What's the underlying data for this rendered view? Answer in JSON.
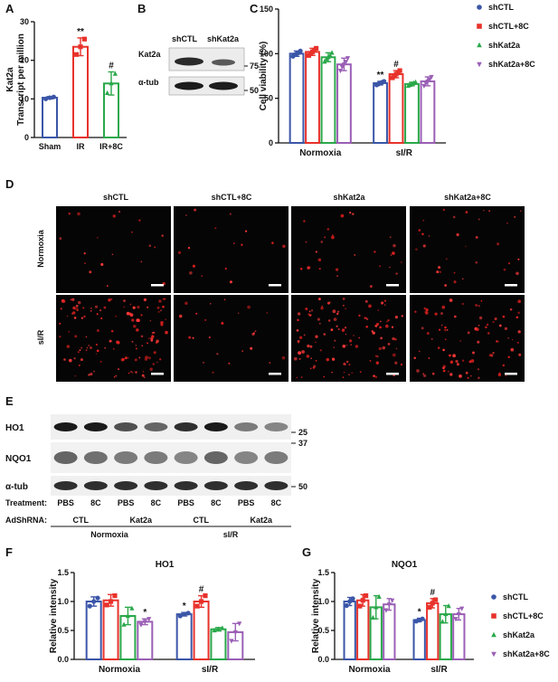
{
  "panels": {
    "A": {
      "label": "A"
    },
    "B": {
      "label": "B"
    },
    "C": {
      "label": "C"
    },
    "D": {
      "label": "D"
    },
    "E": {
      "label": "E"
    },
    "F": {
      "label": "F"
    },
    "G": {
      "label": "G"
    }
  },
  "colors": {
    "blue": "#3b56a8",
    "red": "#e8322b",
    "green": "#2aa84a",
    "purple": "#9a5fb5",
    "axis": "#111111"
  },
  "legend": {
    "entries": [
      {
        "label": "shCTL",
        "color": "#3b56a8",
        "marker": "circle"
      },
      {
        "label": "shCTL+8C",
        "color": "#e8322b",
        "marker": "square"
      },
      {
        "label": "shKat2a",
        "color": "#2aa84a",
        "marker": "triangle-up"
      },
      {
        "label": "shKat2a+8C",
        "color": "#9a5fb5",
        "marker": "triangle-down"
      }
    ]
  },
  "blot_b": {
    "headers": [
      "shCTL",
      "shKat2a"
    ],
    "rows": [
      "Kat2a",
      "α-tub"
    ],
    "markers": [
      "75",
      "50"
    ]
  },
  "images_d": {
    "columns": [
      "shCTL",
      "shCTL+8C",
      "shKat2a",
      "shKat2a+8C"
    ],
    "rows": [
      "Normoxia",
      "sI/R"
    ],
    "density": [
      [
        0.12,
        0.1,
        0.18,
        0.2
      ],
      [
        0.8,
        0.15,
        0.7,
        0.55
      ]
    ]
  },
  "blot_e": {
    "rows": [
      "HO1",
      "NQO1",
      "α-tub"
    ],
    "markers": [
      "25",
      "37",
      "50"
    ],
    "treatment_label": "Treatment:",
    "treatments": [
      "PBS",
      "8C",
      "PBS",
      "8C",
      "PBS",
      "8C",
      "PBS",
      "8C"
    ],
    "adsh_label": "AdShRNA:",
    "adsh": [
      "CTL",
      "Kat2a",
      "CTL",
      "Kat2a"
    ],
    "conditions": [
      "Normoxia",
      "sI/R"
    ],
    "ho1_intensity": [
      0.95,
      0.95,
      0.7,
      0.6,
      0.85,
      0.95,
      0.5,
      0.45
    ],
    "nqo1_intensity": [
      0.6,
      0.55,
      0.5,
      0.5,
      0.45,
      0.6,
      0.45,
      0.5
    ],
    "tub_intensity": [
      0.85,
      0.85,
      0.85,
      0.85,
      0.85,
      0.85,
      0.85,
      0.85
    ]
  },
  "chart_data": [
    {
      "id": "A",
      "type": "bar",
      "title": "",
      "ylabel": "Kat2a\nTranscript per million",
      "categories": [
        "Sham",
        "IR",
        "IR+8C"
      ],
      "values": [
        10.3,
        23.5,
        14.0
      ],
      "errors": [
        0.3,
        2.3,
        3.0
      ],
      "points": [
        [
          10.0,
          10.3,
          10.5
        ],
        [
          21.5,
          23.5,
          25.5
        ],
        [
          11.5,
          14.0,
          16.5
        ]
      ],
      "colors": [
        "#3b56a8",
        "#e8322b",
        "#2aa84a"
      ],
      "annotations": [
        "",
        "**",
        "#"
      ],
      "ylim": [
        0,
        30
      ],
      "yticks": [
        0,
        10,
        20,
        30
      ]
    },
    {
      "id": "C",
      "type": "bar",
      "ylabel": "Cell viability (%)",
      "categories": [
        "Normoxia",
        "sI/R"
      ],
      "series": [
        {
          "name": "shCTL",
          "values": [
            100,
            67
          ],
          "errors": [
            3,
            2
          ],
          "points": [
            [
              97,
              99,
              100,
              101,
              103
            ],
            [
              65,
              66,
              67,
              68,
              69
            ]
          ]
        },
        {
          "name": "shCTL+8C",
          "values": [
            102,
            77
          ],
          "errors": [
            4,
            4
          ],
          "points": [
            [
              98,
              100,
              102,
              104,
              106
            ],
            [
              73,
              75,
              77,
              79,
              81
            ]
          ]
        },
        {
          "name": "shKat2a",
          "values": [
            96,
            66
          ],
          "errors": [
            5,
            2
          ],
          "points": [
            [
              91,
              94,
              96,
              98,
              101
            ],
            [
              64,
              65,
              66,
              67,
              68
            ]
          ]
        },
        {
          "name": "shKat2a+8C",
          "values": [
            88,
            69
          ],
          "errors": [
            7,
            5
          ],
          "points": [
            [
              81,
              85,
              88,
              91,
              95
            ],
            [
              64,
              67,
              69,
              71,
              74
            ]
          ]
        }
      ],
      "annotations": [
        [
          "",
          "",
          "",
          ""
        ],
        [
          "**",
          "#",
          "",
          ""
        ]
      ],
      "ylim": [
        0,
        150
      ],
      "yticks": [
        0,
        50,
        100,
        150
      ]
    },
    {
      "id": "F",
      "type": "bar",
      "title": "HO1",
      "ylabel": "Relative intensity",
      "categories": [
        "Normoxia",
        "sI/R"
      ],
      "series": [
        {
          "name": "shCTL",
          "values": [
            1.0,
            0.78
          ],
          "errors": [
            0.08,
            0.03
          ],
          "points": [
            [
              0.92,
              1.0,
              1.06
            ],
            [
              0.75,
              0.78,
              0.8
            ]
          ]
        },
        {
          "name": "shCTL+8C",
          "values": [
            1.02,
            1.0
          ],
          "errors": [
            0.1,
            0.1
          ],
          "points": [
            [
              0.94,
              1.0,
              1.1
            ],
            [
              0.92,
              1.0,
              1.1
            ]
          ]
        },
        {
          "name": "shKat2a",
          "values": [
            0.75,
            0.52
          ],
          "errors": [
            0.15,
            0.03
          ],
          "points": [
            [
              0.6,
              0.75,
              0.88
            ],
            [
              0.5,
              0.52,
              0.54
            ]
          ]
        },
        {
          "name": "shKat2a+8C",
          "values": [
            0.65,
            0.47
          ],
          "errors": [
            0.05,
            0.15
          ],
          "points": [
            [
              0.6,
              0.65,
              0.7
            ],
            [
              0.32,
              0.47,
              0.62
            ]
          ]
        }
      ],
      "annotations": [
        [
          "",
          "",
          "",
          "*"
        ],
        [
          "*",
          "#",
          "",
          ""
        ]
      ],
      "ylim": [
        0,
        1.5
      ],
      "yticks": [
        0.0,
        0.5,
        1.0,
        1.5
      ]
    },
    {
      "id": "G",
      "type": "bar",
      "title": "NQO1",
      "ylabel": "Relative intensity",
      "categories": [
        "Normoxia",
        "sI/R"
      ],
      "series": [
        {
          "name": "shCTL",
          "values": [
            1.0,
            0.68
          ],
          "errors": [
            0.07,
            0.03
          ],
          "points": [
            [
              0.93,
              1.0,
              1.05
            ],
            [
              0.66,
              0.68,
              0.7
            ]
          ]
        },
        {
          "name": "shCTL+8C",
          "values": [
            1.02,
            0.97
          ],
          "errors": [
            0.1,
            0.08
          ],
          "points": [
            [
              0.92,
              1.02,
              1.1
            ],
            [
              0.9,
              0.97,
              1.03
            ]
          ]
        },
        {
          "name": "shKat2a",
          "values": [
            0.9,
            0.78
          ],
          "errors": [
            0.2,
            0.15
          ],
          "points": [
            [
              0.72,
              0.9,
              1.08
            ],
            [
              0.65,
              0.78,
              0.92
            ]
          ]
        },
        {
          "name": "shKat2a+8C",
          "values": [
            0.95,
            0.78
          ],
          "errors": [
            0.1,
            0.1
          ],
          "points": [
            [
              0.85,
              0.95,
              1.02
            ],
            [
              0.7,
              0.78,
              0.88
            ]
          ]
        }
      ],
      "annotations": [
        [
          "",
          "",
          "",
          ""
        ],
        [
          "*",
          "#",
          "",
          ""
        ]
      ],
      "ylim": [
        0,
        1.5
      ],
      "yticks": [
        0.0,
        0.5,
        1.0,
        1.5
      ]
    }
  ]
}
